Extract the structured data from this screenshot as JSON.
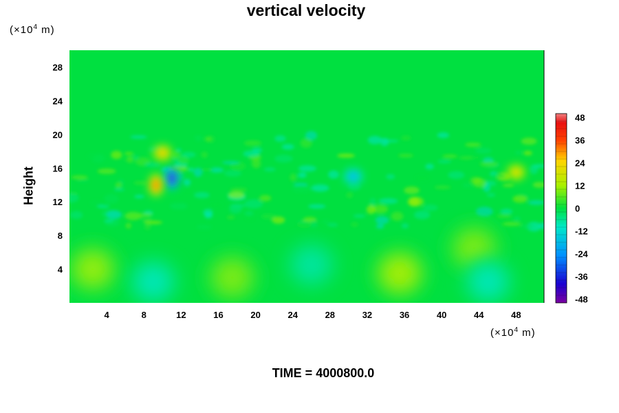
{
  "chart_data": {
    "type": "heatmap",
    "title": "vertical velocity",
    "ylabel": "Height",
    "y_unit_prefix": "(×10",
    "y_unit_exp": "4",
    "y_unit_suffix": " m)",
    "x_unit_prefix": "(×10",
    "x_unit_exp": "4",
    "x_unit_suffix": " m)",
    "xlim": [
      0,
      51
    ],
    "ylim": [
      0,
      30
    ],
    "x_ticks": [
      4,
      8,
      12,
      16,
      20,
      24,
      28,
      32,
      36,
      40,
      44,
      48
    ],
    "y_ticks": [
      4,
      8,
      12,
      16,
      20,
      24,
      28
    ],
    "colorbar": {
      "range": [
        -50,
        50
      ],
      "tick_labels": [
        "48",
        "36",
        "24",
        "12",
        "0",
        "-12",
        "-24",
        "-36",
        "-48"
      ],
      "tick_values": [
        48,
        36,
        24,
        12,
        0,
        -12,
        -24,
        -36,
        -48
      ]
    },
    "features": [
      {
        "x": 11.0,
        "y": 14.8,
        "value": -46
      },
      {
        "x": 9.3,
        "y": 14.0,
        "value": 38
      },
      {
        "x": 10.0,
        "y": 17.8,
        "value": 28
      },
      {
        "x": 30.5,
        "y": 15.0,
        "value": -22
      },
      {
        "x": 48.0,
        "y": 15.5,
        "value": 24
      },
      {
        "x": 2.5,
        "y": 4.0,
        "value": 12
      },
      {
        "x": 17.5,
        "y": 3.0,
        "value": 10
      },
      {
        "x": 35.5,
        "y": 3.5,
        "value": 14
      },
      {
        "x": 43.5,
        "y": 6.5,
        "value": 10
      },
      {
        "x": 9.0,
        "y": 2.5,
        "value": -10
      },
      {
        "x": 26.0,
        "y": 4.5,
        "value": -8
      },
      {
        "x": 45.0,
        "y": 2.5,
        "value": -10
      }
    ]
  },
  "time_label": "TIME = 4000800.0"
}
